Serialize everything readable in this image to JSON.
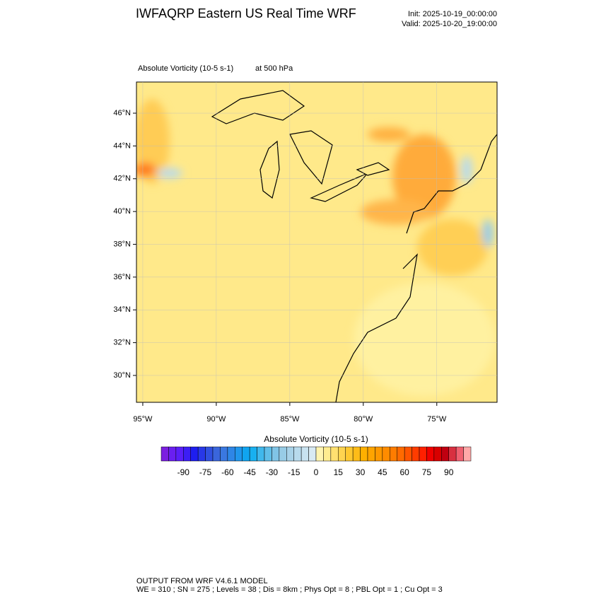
{
  "header": {
    "title": "IWFAQRP Eastern US Real Time WRF",
    "init": "Init: 2025-10-19_00:00:00",
    "valid": "Valid: 2025-10-20_19:00:00"
  },
  "map": {
    "field": "Absolute Vorticity   (10-5 s-1)",
    "level": "at   500 hPa",
    "xlim": [
      -95.43,
      -70.9
    ],
    "ylim": [
      28.36,
      47.9
    ],
    "yticks": [
      {
        "value": 30,
        "label": "30°N"
      },
      {
        "value": 32,
        "label": "32°N"
      },
      {
        "value": 34,
        "label": "34°N"
      },
      {
        "value": 36,
        "label": "36°N"
      },
      {
        "value": 38,
        "label": "38°N"
      },
      {
        "value": 40,
        "label": "40°N"
      },
      {
        "value": 42,
        "label": "42°N"
      },
      {
        "value": 44,
        "label": "44°N"
      },
      {
        "value": 46,
        "label": "46°N"
      }
    ],
    "xticks": [
      {
        "value": -95,
        "label": "95°W"
      },
      {
        "value": -90,
        "label": "90°W"
      },
      {
        "value": -85,
        "label": "85°W"
      },
      {
        "value": -80,
        "label": "80°W"
      },
      {
        "value": -75,
        "label": "75°W"
      }
    ]
  },
  "colorbar": {
    "title": "Absolute Vorticity  (10-5 s-1)",
    "lim": [
      -105,
      105
    ],
    "ticks": [
      -90,
      -75,
      -60,
      -45,
      -30,
      -15,
      0,
      15,
      30,
      45,
      60,
      75,
      90
    ],
    "colors": [
      "#7b1fe0",
      "#6a1ff0",
      "#5a1ff8",
      "#3c1ef5",
      "#1e1ef0",
      "#2838e8",
      "#3050e0",
      "#3a66dc",
      "#3a78e0",
      "#2e86e6",
      "#2096ec",
      "#10a4f0",
      "#18b0f0",
      "#40b8ec",
      "#60bee8",
      "#80c4e6",
      "#98cce6",
      "#a8d2e8",
      "#b8daec",
      "#c8e2f0",
      "#d8eaf4",
      "#fff4b0",
      "#ffec90",
      "#ffe070",
      "#ffd450",
      "#ffc830",
      "#ffbc18",
      "#ffb000",
      "#ffa400",
      "#ff9800",
      "#ff8c00",
      "#ff7c00",
      "#ff6a00",
      "#ff5400",
      "#ff3c00",
      "#ff2000",
      "#f00000",
      "#d80000",
      "#c00010",
      "#d83040",
      "#f06070",
      "#ffa8a8"
    ]
  },
  "footer": {
    "line1": "OUTPUT FROM WRF V4.6.1 MODEL",
    "line2": "WE = 310 ; SN = 275 ; Levels = 38 ; Dis = 8km ; Phys Opt = 8 ; PBL Opt = 1 ; Cu Opt = 3"
  }
}
